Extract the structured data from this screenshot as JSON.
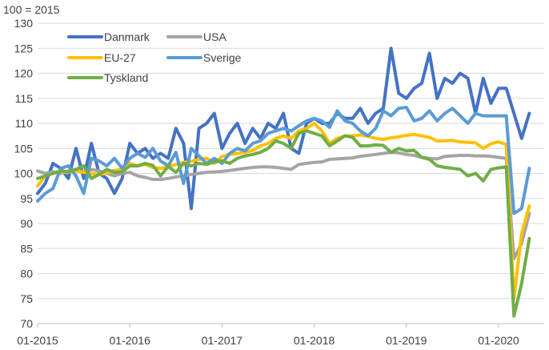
{
  "chart_data": {
    "type": "line",
    "unit_label": "100 = 2015",
    "ylim": [
      70,
      130
    ],
    "yticks": [
      70,
      75,
      80,
      85,
      90,
      95,
      100,
      105,
      110,
      115,
      120,
      125,
      130
    ],
    "xlim": [
      0,
      68
    ],
    "xticks": [
      {
        "pos": 0,
        "label": "01-2015"
      },
      {
        "pos": 12,
        "label": "01-2016"
      },
      {
        "pos": 24,
        "label": "01-2017"
      },
      {
        "pos": 36,
        "label": "01-2018"
      },
      {
        "pos": 48,
        "label": "01-2019"
      },
      {
        "pos": 60,
        "label": "01-2020"
      }
    ],
    "grid": "horizontal",
    "legend_position": "top-left",
    "series": [
      {
        "name": "Danmark",
        "color": "#4472C4",
        "values": [
          96,
          98,
          102,
          101,
          99,
          105,
          99,
          106,
          100,
          99,
          96,
          99,
          106,
          104,
          105,
          103,
          104,
          103,
          109,
          106,
          93,
          109,
          110,
          112,
          105,
          108,
          110,
          106,
          109,
          107,
          110,
          109,
          112,
          105,
          104,
          110,
          111,
          110,
          110,
          112,
          111,
          111,
          113,
          110,
          112,
          113,
          125,
          116,
          115,
          117,
          118,
          124,
          115,
          119,
          118,
          120,
          119,
          112,
          119,
          114,
          117,
          117,
          112,
          107,
          112
        ]
      },
      {
        "name": "USA",
        "color": "#A5A5A5",
        "values": [
          100.5,
          100,
          100.3,
          100,
          100.5,
          100.8,
          100.2,
          100.8,
          100.5,
          100,
          99.5,
          100,
          100.2,
          99.5,
          99.2,
          98.8,
          98.8,
          99,
          99.3,
          99.5,
          99.8,
          100,
          100.2,
          100.3,
          100.4,
          100.6,
          100.8,
          101,
          101.2,
          101.3,
          101.3,
          101.2,
          101,
          100.8,
          101.8,
          102,
          102.2,
          102.3,
          102.8,
          102.9,
          103,
          103.1,
          103.4,
          103.6,
          103.8,
          104.0,
          104.2,
          104.1,
          103.8,
          103.6,
          103.2,
          103.0,
          102.9,
          103.4,
          103.5,
          103.6,
          103.6,
          103.5,
          103.5,
          103.4,
          103.2,
          103.0,
          83,
          86,
          92
        ]
      },
      {
        "name": "EU-27",
        "color": "#FFC000",
        "values": [
          97.5,
          99.5,
          100,
          100.3,
          100.2,
          100.5,
          100.2,
          100,
          99.8,
          100.1,
          100.6,
          100.8,
          102,
          101.5,
          101.8,
          101.2,
          101,
          101.3,
          101.8,
          102.2,
          102.4,
          102.8,
          103,
          102,
          103.4,
          103.8,
          104,
          104.2,
          104.6,
          105.5,
          106,
          107,
          107.5,
          107,
          108.5,
          109,
          110,
          108.5,
          106,
          107,
          107.5,
          107.5,
          107.7,
          107.4,
          107,
          106.8,
          107.1,
          107.3,
          107.6,
          107.8,
          107.5,
          107.2,
          106.5,
          106.5,
          106.6,
          106.3,
          106.2,
          106.1,
          105,
          105.9,
          106.3,
          105.8,
          75,
          88,
          93.5
        ]
      },
      {
        "name": "Sverige",
        "color": "#5B9BD5",
        "values": [
          94.5,
          96,
          97,
          101,
          101.5,
          99.5,
          96,
          103,
          102.5,
          101.5,
          103,
          101,
          103,
          104,
          103.2,
          105,
          102.5,
          101.5,
          104.2,
          98,
          105,
          103.5,
          102,
          103,
          102,
          104,
          105,
          104.5,
          106,
          106.5,
          108,
          108.5,
          109,
          108.5,
          109.5,
          110.5,
          111,
          110.5,
          109.2,
          112.5,
          110.5,
          110,
          108.5,
          107.5,
          109,
          112.5,
          111.5,
          113,
          113.2,
          110.5,
          111,
          112.5,
          110.5,
          112,
          113,
          111.5,
          110,
          112,
          111.5,
          111.5,
          111.5,
          111.5,
          92,
          93,
          101
        ]
      },
      {
        "name": "Tyskland",
        "color": "#70AD47",
        "values": [
          99,
          99.5,
          100,
          100.5,
          100.3,
          100.8,
          101.5,
          99,
          99.8,
          100.8,
          100.2,
          100.3,
          101.5,
          101.5,
          102,
          101.6,
          99.5,
          101.4,
          100.2,
          102,
          101.5,
          102,
          101.8,
          102.3,
          102.5,
          102,
          103,
          103.5,
          103.8,
          104.2,
          105,
          106.5,
          106,
          105,
          108,
          108.5,
          108,
          107.5,
          105.5,
          106.5,
          107.5,
          107.2,
          105.5,
          105.5,
          105.7,
          105.6,
          104.2,
          105.0,
          104.5,
          104.6,
          103.2,
          102.8,
          101.5,
          101.2,
          101.0,
          100.8,
          99.5,
          100.0,
          98.5,
          100.8,
          101.1,
          101.3,
          71.5,
          78,
          87
        ]
      }
    ]
  }
}
